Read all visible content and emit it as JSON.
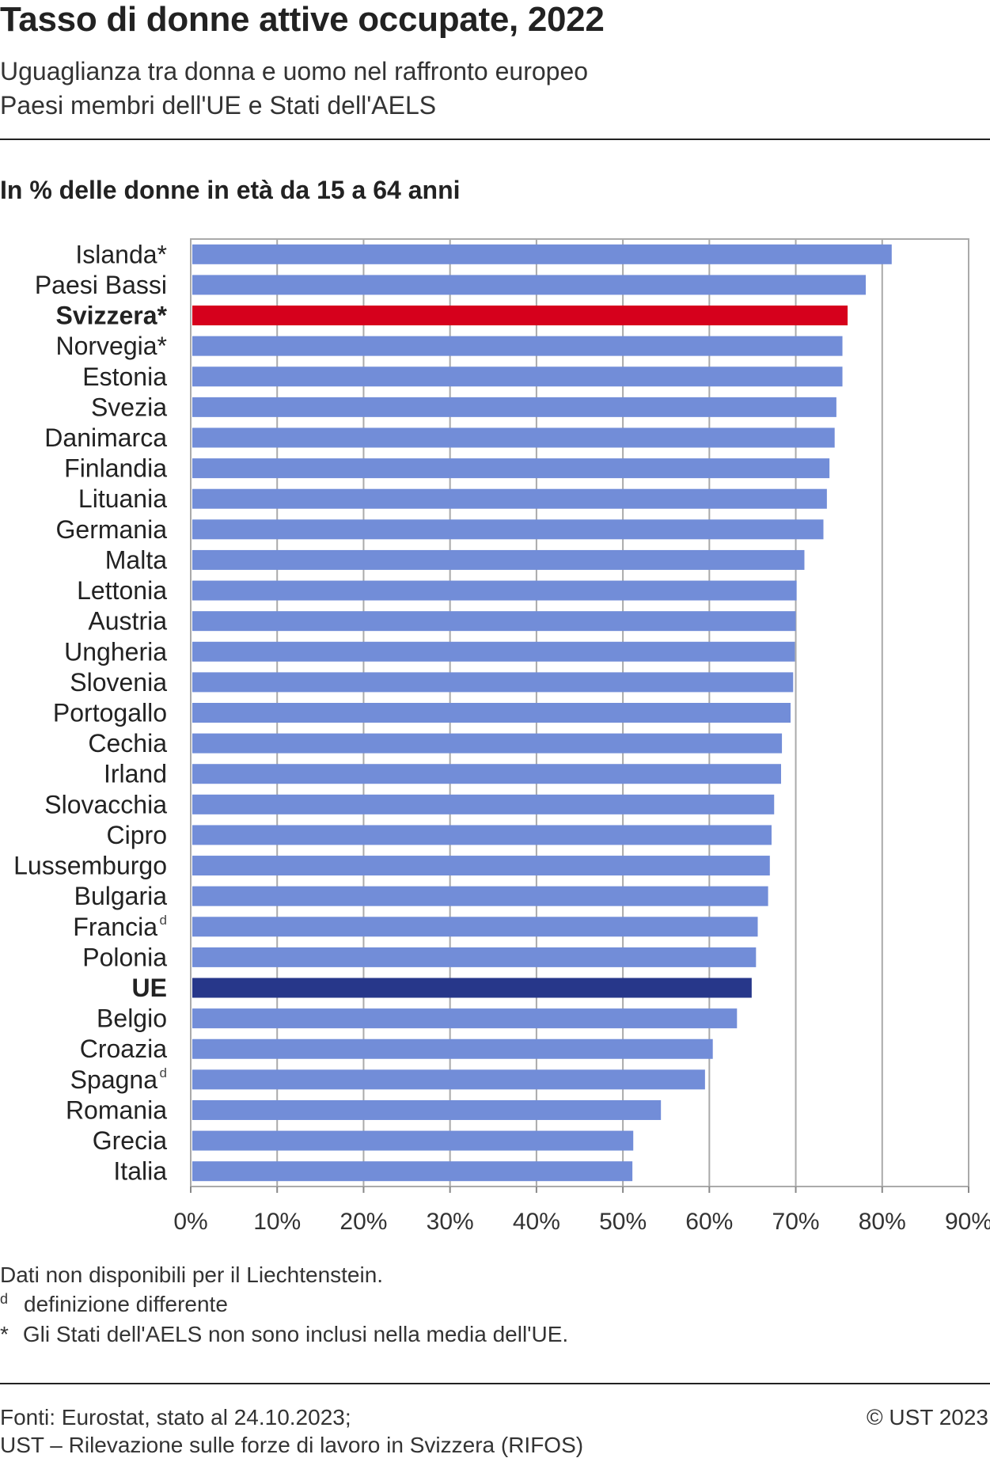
{
  "header": {
    "title": "Tasso di donne attive occupate, 2022",
    "subtitle1": "Uguaglianza tra donna e uomo nel raffronto europeo",
    "subtitle2": "Paesi membri dell'UE e Stati dell'AELS",
    "unit": "In % delle donne in età da 15 a 64 anni"
  },
  "colors": {
    "bar": "#728dd8",
    "highlight": "#d6001c",
    "eu": "#27378a",
    "grid": "#aaaaaa"
  },
  "chart_data": {
    "type": "bar",
    "orientation": "horizontal",
    "title": "",
    "xlabel": "",
    "ylabel": "",
    "xlim": [
      0,
      90
    ],
    "x_ticks": [
      "0%",
      "10%",
      "20%",
      "30%",
      "40%",
      "50%",
      "60%",
      "70%",
      "80%",
      "90%"
    ],
    "grid": true,
    "categories": [
      "Islanda*",
      "Paesi Bassi",
      "Svizzera*",
      "Norvegia*",
      "Estonia",
      "Svezia",
      "Danimarca",
      "Finlandia",
      "Lituania",
      "Germania",
      "Malta",
      "Lettonia",
      "Austria",
      "Ungheria",
      "Slovenia",
      "Portogallo",
      "Cechia",
      "Irland",
      "Slovacchia",
      "Cipro",
      "Lussemburgo",
      "Bulgaria",
      "Francia",
      "Polonia",
      "UE",
      "Belgio",
      "Croazia",
      "Spagna",
      "Romania",
      "Grecia",
      "Italia"
    ],
    "label_superscripts": [
      "",
      "",
      "",
      "",
      "",
      "",
      "",
      "",
      "",
      "",
      "",
      "",
      "",
      "",
      "",
      "",
      "",
      "",
      "",
      "",
      "",
      "",
      "d",
      "",
      "",
      "",
      "",
      "d",
      "",
      "",
      ""
    ],
    "values": [
      81.1,
      78.1,
      76.0,
      75.4,
      75.4,
      74.7,
      74.5,
      73.9,
      73.6,
      73.2,
      71.0,
      70.1,
      70.0,
      69.9,
      69.7,
      69.4,
      68.4,
      68.3,
      67.5,
      67.2,
      67.0,
      66.8,
      65.6,
      65.4,
      64.9,
      63.2,
      60.4,
      59.5,
      54.4,
      51.2,
      51.1
    ],
    "highlight": [
      "Svizzera*"
    ],
    "emphasis": [
      "UE"
    ]
  },
  "notes": {
    "line1": "Dati non disponibili per il Liechtenstein.",
    "line2_mark": "d",
    "line2": "definizione differente",
    "line3_mark": "*",
    "line3": "Gli Stati dell'AELS non sono inclusi nella media dell'UE."
  },
  "footer": {
    "source1": "Fonti: Eurostat, stato al 24.10.2023;",
    "source2": "UST – Rilevazione sulle forze di lavoro in Svizzera (RIFOS)",
    "copyright": "© UST 2023"
  }
}
